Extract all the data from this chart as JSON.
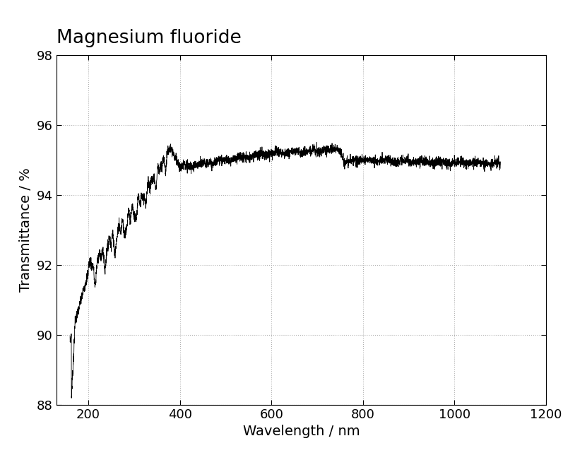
{
  "title": "Magnesium fluoride",
  "xlabel": "Wavelength / nm",
  "ylabel": "Transmittance / %",
  "xlim": [
    130,
    1200
  ],
  "ylim": [
    88,
    98
  ],
  "xticks": [
    200,
    400,
    600,
    800,
    1000,
    1200
  ],
  "yticks": [
    88,
    90,
    92,
    94,
    96,
    98
  ],
  "background_color": "#ffffff",
  "line_color": "#000000",
  "grid_color": "#b0b0b0",
  "title_fontsize": 19,
  "label_fontsize": 14,
  "tick_fontsize": 13
}
